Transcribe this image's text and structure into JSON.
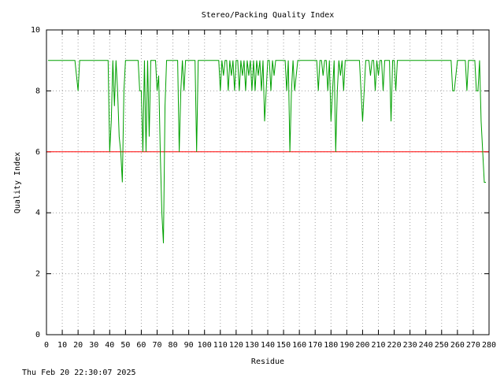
{
  "chart_data": {
    "type": "line",
    "title": "Stereo/Packing Quality Index",
    "xlabel": "Residue",
    "ylabel": "Quality Index",
    "footer": "Thu Feb 20 22:30:07 2025",
    "xlim": [
      0,
      280
    ],
    "ylim": [
      0,
      10
    ],
    "xticks": [
      0,
      10,
      20,
      30,
      40,
      50,
      60,
      70,
      80,
      90,
      100,
      110,
      120,
      130,
      140,
      150,
      160,
      170,
      180,
      190,
      200,
      210,
      220,
      230,
      240,
      250,
      260,
      270,
      280
    ],
    "yticks": [
      0,
      2,
      4,
      6,
      8,
      10
    ],
    "grid": true,
    "reference_line": {
      "value": 6,
      "color": "#ff0000"
    },
    "x": [
      1,
      2,
      3,
      4,
      5,
      6,
      7,
      8,
      9,
      10,
      11,
      12,
      13,
      14,
      15,
      16,
      17,
      18,
      19,
      20,
      21,
      22,
      23,
      24,
      25,
      26,
      27,
      28,
      29,
      30,
      31,
      32,
      33,
      34,
      35,
      36,
      37,
      38,
      39,
      40,
      41,
      42,
      43,
      44,
      45,
      46,
      47,
      48,
      49,
      50,
      51,
      52,
      53,
      54,
      55,
      56,
      57,
      58,
      59,
      60,
      61,
      62,
      63,
      64,
      65,
      66,
      67,
      68,
      69,
      70,
      71,
      72,
      73,
      74,
      75,
      76,
      77,
      78,
      79,
      80,
      81,
      82,
      83,
      84,
      85,
      86,
      87,
      88,
      89,
      90,
      91,
      92,
      93,
      94,
      95,
      96,
      97,
      98,
      99,
      100,
      101,
      102,
      103,
      104,
      105,
      106,
      107,
      108,
      109,
      110,
      111,
      112,
      113,
      114,
      115,
      116,
      117,
      118,
      119,
      120,
      121,
      122,
      123,
      124,
      125,
      126,
      127,
      128,
      129,
      130,
      131,
      132,
      133,
      134,
      135,
      136,
      137,
      138,
      139,
      140,
      141,
      142,
      143,
      144,
      145,
      146,
      147,
      148,
      149,
      150,
      151,
      152,
      153,
      154,
      155,
      156,
      157,
      158,
      159,
      160,
      161,
      162,
      163,
      164,
      165,
      166,
      167,
      168,
      169,
      170,
      171,
      172,
      173,
      174,
      175,
      176,
      177,
      178,
      179,
      180,
      181,
      182,
      183,
      184,
      185,
      186,
      187,
      188,
      189,
      190,
      191,
      192,
      193,
      194,
      195,
      196,
      197,
      198,
      199,
      200,
      201,
      202,
      203,
      204,
      205,
      206,
      207,
      208,
      209,
      210,
      211,
      212,
      213,
      214,
      215,
      216,
      217,
      218,
      219,
      220,
      221,
      222,
      223,
      224,
      225,
      226,
      227,
      228,
      229,
      230,
      231,
      232,
      233,
      234,
      235,
      236,
      237,
      238,
      239,
      240,
      241,
      242,
      243,
      244,
      245,
      246,
      247,
      248,
      249,
      250,
      251,
      252,
      253,
      254,
      255,
      256,
      257,
      258,
      259,
      260,
      261,
      262,
      263,
      264,
      265,
      266,
      267,
      268,
      269,
      270,
      271,
      272,
      273,
      274,
      275,
      276,
      277,
      278
    ],
    "series": [
      {
        "color": "#00a000",
        "values": [
          9,
          9,
          9,
          9,
          9,
          9,
          9,
          9,
          9,
          9,
          9,
          9,
          9,
          9,
          9,
          9,
          9,
          9,
          8.5,
          8,
          9,
          9,
          9,
          9,
          9,
          9,
          9,
          9,
          9,
          9,
          9,
          9,
          9,
          9,
          9,
          9,
          9,
          9,
          9,
          6,
          7,
          9,
          7.5,
          9,
          8,
          6.5,
          6,
          5,
          8,
          9,
          9,
          9,
          9,
          9,
          9,
          9,
          9,
          9,
          8,
          8,
          6,
          9,
          6,
          9,
          6.5,
          9,
          9,
          9,
          9,
          8,
          8.5,
          6,
          4,
          3,
          7.5,
          9,
          9,
          9,
          9,
          9,
          9,
          9,
          9,
          6,
          8,
          9,
          8,
          9,
          9,
          9,
          9,
          9,
          9,
          9,
          6,
          9,
          9,
          9,
          9,
          9,
          9,
          9,
          9,
          9,
          9,
          9,
          9,
          9,
          9,
          8,
          9,
          8.5,
          9,
          9,
          8,
          9,
          8.5,
          9,
          8,
          9,
          9,
          8,
          9,
          8.5,
          9,
          8,
          9,
          8.5,
          9,
          8,
          9,
          8,
          9,
          8.5,
          9,
          8,
          9,
          7,
          8,
          9,
          9,
          8,
          9,
          8.5,
          9,
          9,
          9,
          9,
          9,
          9,
          9,
          8,
          9,
          6,
          8,
          9,
          8,
          8.5,
          9,
          9,
          9,
          9,
          9,
          9,
          9,
          9,
          9,
          9,
          9,
          9,
          9,
          8,
          9,
          9,
          8.5,
          9,
          9,
          8,
          9,
          7,
          8,
          9,
          6,
          8,
          9,
          8.5,
          9,
          8,
          9,
          9,
          9,
          9,
          9,
          9,
          9,
          9,
          9,
          9,
          8,
          7,
          8,
          9,
          9,
          9,
          8.5,
          9,
          9,
          8,
          9,
          8.5,
          9,
          9,
          8,
          9,
          9,
          9,
          9,
          7,
          9,
          9,
          8,
          9,
          9,
          9,
          9,
          9,
          9,
          9,
          9,
          9,
          9,
          9,
          9,
          9,
          9,
          9,
          9,
          9,
          9,
          9,
          9,
          9,
          9,
          9,
          9,
          9,
          9,
          9,
          9,
          9,
          9,
          9,
          9,
          9,
          9,
          9,
          8,
          8,
          8.5,
          9,
          9,
          9,
          9,
          9,
          9,
          8,
          9,
          9,
          9,
          9,
          9,
          8,
          8,
          9,
          7,
          6,
          5,
          5
        ]
      }
    ]
  }
}
